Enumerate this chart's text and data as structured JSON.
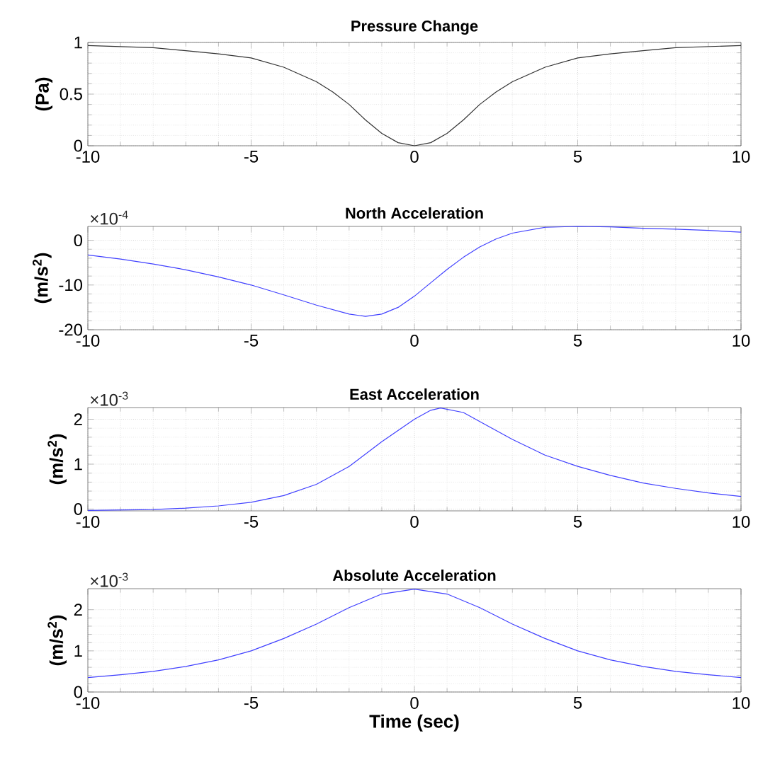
{
  "chart_data": [
    {
      "type": "line",
      "title": "Pressure Change",
      "ylabel": "(Pa)",
      "color": "#333333",
      "grid": true,
      "xlim": [
        -10,
        10
      ],
      "xticks": [
        -10,
        -5,
        0,
        5,
        10
      ],
      "ylim": [
        0,
        1
      ],
      "yticks": [
        0,
        0.5,
        1
      ],
      "x": [
        -10,
        -9,
        -8,
        -7,
        -6,
        -5,
        -4,
        -3,
        -2.5,
        -2,
        -1.5,
        -1,
        -0.5,
        0,
        0.5,
        1,
        1.5,
        2,
        2.5,
        3,
        4,
        5,
        6,
        7,
        8,
        9,
        10
      ],
      "values": [
        0.97,
        0.96,
        0.95,
        0.92,
        0.89,
        0.85,
        0.76,
        0.62,
        0.52,
        0.4,
        0.25,
        0.12,
        0.03,
        0,
        0.03,
        0.12,
        0.25,
        0.4,
        0.52,
        0.62,
        0.76,
        0.85,
        0.89,
        0.92,
        0.95,
        0.96,
        0.97
      ]
    },
    {
      "type": "line",
      "title": "North Acceleration",
      "ylabel": "(m/s$^{2}$)",
      "annotations": [
        "×10$^{-4}$"
      ],
      "color": "#4040ff",
      "grid": true,
      "xlim": [
        -10,
        10
      ],
      "xticks": [
        -10,
        -5,
        0,
        5,
        10
      ],
      "ylim": [
        -20,
        3.1
      ],
      "yticks": [
        -20,
        -10,
        0
      ],
      "x": [
        -10,
        -9,
        -8,
        -7,
        -6,
        -5,
        -4,
        -3,
        -2,
        -1.5,
        -1,
        -0.5,
        0,
        0.5,
        1,
        1.5,
        2,
        2.5,
        3,
        4,
        5,
        6,
        7,
        8,
        9,
        10
      ],
      "values": [
        -3.3,
        -4.2,
        -5.3,
        -6.6,
        -8.2,
        -10,
        -12.2,
        -14.5,
        -16.5,
        -17,
        -16.5,
        -15,
        -12.5,
        -9.5,
        -6.5,
        -3.8,
        -1.5,
        0.3,
        1.6,
        2.9,
        3.1,
        3.0,
        2.7,
        2.5,
        2.2,
        1.8
      ]
    },
    {
      "type": "line",
      "title": "East Acceleration",
      "ylabel": "(m/s$^{2}$)",
      "annotations": [
        "×10$^{-3}$"
      ],
      "color": "#4040ff",
      "grid": true,
      "xlim": [
        -10,
        10
      ],
      "xticks": [
        -10,
        -5,
        0,
        5,
        10
      ],
      "ylim": [
        -0.04,
        2.26
      ],
      "yticks": [
        0,
        1,
        2
      ],
      "x": [
        -10,
        -8,
        -7,
        -6,
        -5,
        -4,
        -3,
        -2,
        -1,
        0,
        0.5,
        0.8,
        1.5,
        2,
        3,
        4,
        5,
        6,
        7,
        8,
        9,
        10
      ],
      "values": [
        -0.03,
        -0.01,
        0.02,
        0.07,
        0.15,
        0.3,
        0.55,
        0.95,
        1.5,
        2.0,
        2.2,
        2.25,
        2.15,
        1.95,
        1.55,
        1.2,
        0.95,
        0.75,
        0.58,
        0.46,
        0.36,
        0.28
      ]
    },
    {
      "type": "line",
      "title": "Absolute Acceleration",
      "xlabel": "Time (sec)",
      "ylabel": "(m/s$^{2}$)",
      "annotations": [
        "×10$^{-3}$"
      ],
      "color": "#4040ff",
      "grid": true,
      "xlim": [
        -10,
        10
      ],
      "xticks": [
        -10,
        -5,
        0,
        5,
        10
      ],
      "ylim": [
        0,
        2.51
      ],
      "yticks": [
        0,
        1,
        2
      ],
      "x": [
        -10,
        -9,
        -8,
        -7,
        -6,
        -5,
        -4,
        -3,
        -2,
        -1,
        0,
        1,
        2,
        3,
        4,
        5,
        6,
        7,
        8,
        9,
        10
      ],
      "values": [
        0.35,
        0.42,
        0.5,
        0.62,
        0.78,
        1.0,
        1.3,
        1.65,
        2.05,
        2.38,
        2.5,
        2.38,
        2.05,
        1.65,
        1.3,
        1.0,
        0.78,
        0.62,
        0.5,
        0.42,
        0.35
      ]
    }
  ]
}
